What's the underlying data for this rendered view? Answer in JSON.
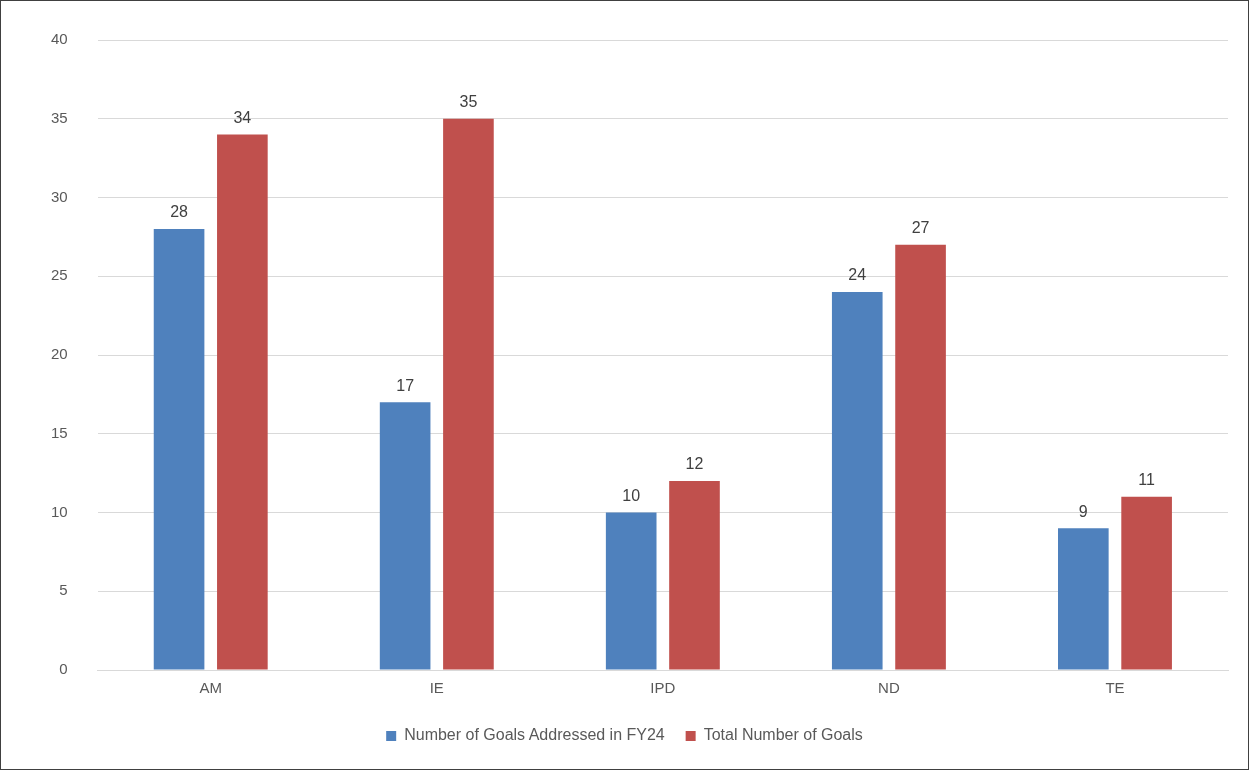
{
  "chart_data": {
    "type": "bar",
    "categories": [
      "AM",
      "IE",
      "IPD",
      "ND",
      "TE"
    ],
    "series": [
      {
        "name": "Number of Goals Addressed in FY24",
        "color": "#4f81bd",
        "values": [
          28,
          17,
          10,
          24,
          9
        ]
      },
      {
        "name": "Total Number of Goals",
        "color": "#c0504d",
        "values": [
          34,
          35,
          12,
          27,
          11
        ]
      }
    ],
    "ylim": [
      0,
      40
    ],
    "yticks": [
      0,
      5,
      10,
      15,
      20,
      25,
      30,
      35,
      40
    ],
    "grid": "y",
    "legend": "bottom",
    "data_labels": true
  }
}
